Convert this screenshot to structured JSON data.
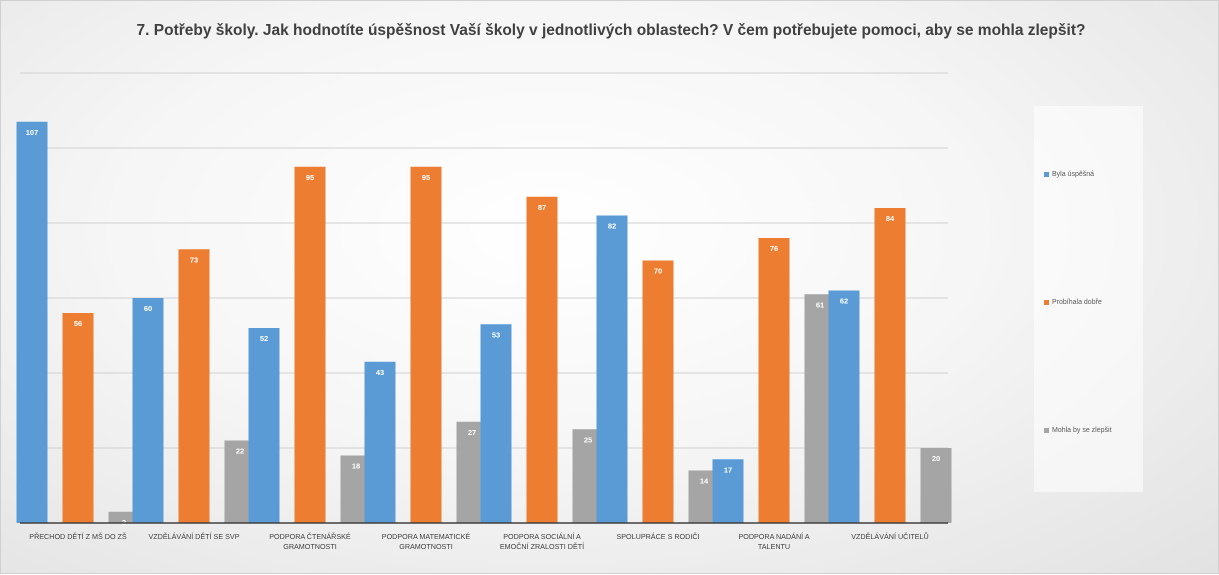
{
  "title": "7. Potřeby školy. Jak hodnotíte úspěšnost Vaší školy v jednotlivých oblastech? V čem potřebujete pomoci, aby se mohla zlepšit?",
  "chart_data": {
    "type": "bar",
    "title": "7. Potřeby školy. Jak hodnotíte úspěšnost Vaší školy v jednotlivých oblastech? V čem potřebujete pomoci, aby se mohla zlepšit?",
    "categories": [
      [
        "PŘECHOD DĚTÍ Z MŠ DO ZŠ"
      ],
      [
        "VZDĚLÁVÁNÍ DĚTÍ SE SVP"
      ],
      [
        "PODPORA ČTENÁŘSKÉ",
        "GRAMOTNOSTI"
      ],
      [
        "PODPORA MATEMATICKÉ",
        "GRAMOTNOSTI"
      ],
      [
        "PODPORA SOCIÁLNÍ A",
        "EMOČNÍ ZRALOSTI DĚTÍ"
      ],
      [
        "SPOLUPRÁCE S RODIČI"
      ],
      [
        "PODPORA NADÁNÍ A",
        "TALENTU"
      ],
      [
        "VZDĚLÁVÁNÍ UČITELŮ"
      ]
    ],
    "series": [
      {
        "name": "Byla úspěšná",
        "color": "#5b9bd5",
        "values": [
          107,
          60,
          52,
          43,
          53,
          82,
          17,
          62
        ]
      },
      {
        "name": "Probíhala dobře",
        "color": "#ed7d31",
        "values": [
          56,
          73,
          95,
          95,
          87,
          70,
          76,
          84
        ]
      },
      {
        "name": "Mohla by se zlepšit",
        "color": "#a5a5a5",
        "values": [
          3,
          22,
          18,
          27,
          25,
          14,
          61,
          20
        ]
      }
    ],
    "ylim": [
      0,
      120
    ],
    "grid": true,
    "legend": "right"
  }
}
